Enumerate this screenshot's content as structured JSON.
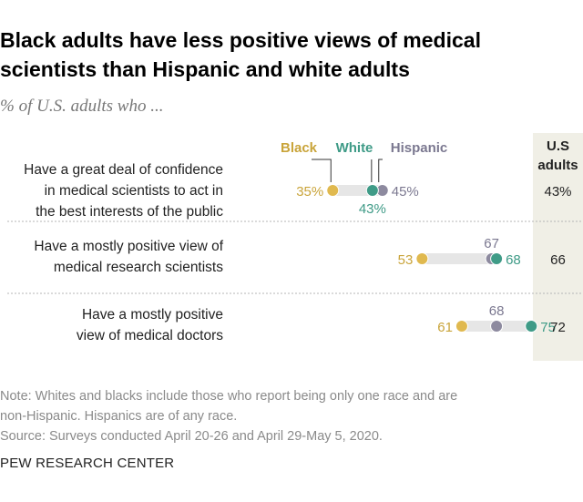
{
  "title_line1": "Black adults have less positive views of medical",
  "title_line2": "scientists than Hispanic and white adults",
  "subtitle": "% of U.S. adults who ...",
  "chart_data": {
    "type": "dot",
    "series": [
      {
        "name": "Black",
        "color": "#e0b94f",
        "label_color": "#c9a43a"
      },
      {
        "name": "White",
        "color": "#3f9b87",
        "label_color": "#3f9b87"
      },
      {
        "name": "Hispanic",
        "color": "#8d8a9f",
        "label_color": "#7b7890"
      }
    ],
    "total_header_line1": "U.S",
    "total_header_line2": "adults",
    "rows": [
      {
        "label_lines": [
          "Have a great deal of confidence",
          "in medical scientists to act in",
          "the best interests of the public"
        ],
        "values": {
          "Black": 35,
          "White": 43,
          "Hispanic": 45
        },
        "value_labels": {
          "Black": "35%",
          "White": "43%",
          "Hispanic": "45%"
        },
        "total": "43%"
      },
      {
        "label_lines": [
          "Have a mostly positive view of",
          "medical research scientists"
        ],
        "values": {
          "Black": 53,
          "White": 68,
          "Hispanic": 67
        },
        "value_labels": {
          "Black": "53",
          "White": "68",
          "Hispanic": "67"
        },
        "total": "66"
      },
      {
        "label_lines": [
          "Have a mostly positive",
          "view of medical doctors"
        ],
        "values": {
          "Black": 61,
          "White": 75,
          "Hispanic": 68
        },
        "value_labels": {
          "Black": "61",
          "White": "75",
          "Hispanic": "68"
        },
        "total": "72"
      }
    ],
    "range_bar_color": "#e6e6e6",
    "total_column_bg": "#f0efe6"
  },
  "notes": {
    "line1": "Note: Whites and blacks include those who report being only one race and are",
    "line2": "non-Hispanic. Hispanics are of any race.",
    "line3": "Source: Surveys conducted April 20-26 and April 29-May 5, 2020."
  },
  "footer": "PEW RESEARCH CENTER"
}
